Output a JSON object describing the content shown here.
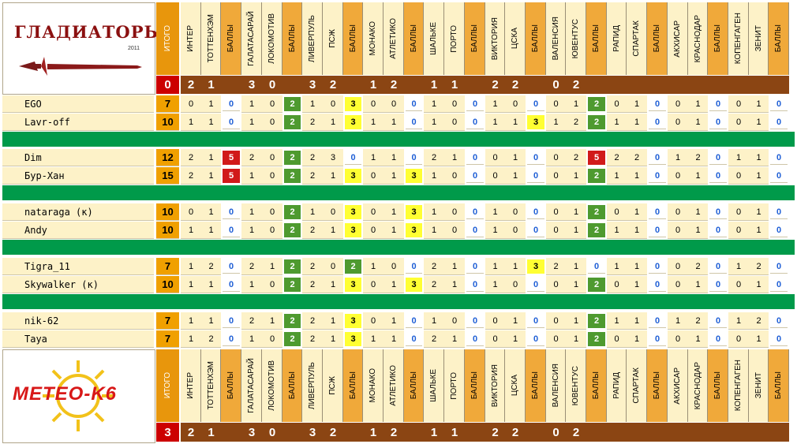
{
  "header": {
    "logo_text": "ГЛАДИАТОРЫ",
    "logo_year": "2011",
    "itogo_label": "ИТОГО",
    "points_label": "БАЛЛЫ",
    "total_value": "0"
  },
  "footer": {
    "logo_text": "METEO-K6",
    "itogo_label": "ИТОГО",
    "points_label": "БАЛЛЫ",
    "total_value": "3"
  },
  "matches": [
    {
      "home": "ИНТЕР",
      "away": "ТОТТЕНХЭМ",
      "hs": "2",
      "as": "1"
    },
    {
      "home": "ГАЛАТАСАРАЙ",
      "away": "ЛОКОМОТИВ",
      "hs": "3",
      "as": "0"
    },
    {
      "home": "ЛИВЕРПУЛЬ",
      "away": "ПСЖ",
      "hs": "3",
      "as": "2"
    },
    {
      "home": "МОНАКО",
      "away": "АТЛЕТИКО",
      "hs": "1",
      "as": "2"
    },
    {
      "home": "ШАЛЬКЕ",
      "away": "ПОРТО",
      "hs": "1",
      "as": "1"
    },
    {
      "home": "ВИКТОРИЯ",
      "away": "ЦСКА",
      "hs": "2",
      "as": "2"
    },
    {
      "home": "ВАЛЕНСИЯ",
      "away": "ЮВЕНТУС",
      "hs": "0",
      "as": "2"
    },
    {
      "home": "РАПИД",
      "away": "СПАРТАК",
      "hs": "",
      "as": ""
    },
    {
      "home": "АКХИСАР",
      "away": "КРАСНОДАР",
      "hs": "",
      "as": ""
    },
    {
      "home": "КОПЕНГАГЕН",
      "away": "ЗЕНИТ",
      "hs": "",
      "as": ""
    }
  ],
  "players": [
    {
      "name": "EGO",
      "total": "7",
      "cells": [
        [
          "0",
          "1",
          "0"
        ],
        [
          "1",
          "0",
          "2"
        ],
        [
          "1",
          "0",
          "3"
        ],
        [
          "0",
          "0",
          "0"
        ],
        [
          "1",
          "0",
          "0"
        ],
        [
          "1",
          "0",
          "0"
        ],
        [
          "0",
          "1",
          "2"
        ],
        [
          "0",
          "1",
          "0"
        ],
        [
          "0",
          "1",
          "0"
        ],
        [
          "0",
          "1",
          "0"
        ]
      ]
    },
    {
      "name": "Lavr-off",
      "total": "10",
      "cells": [
        [
          "1",
          "1",
          "0"
        ],
        [
          "1",
          "0",
          "2"
        ],
        [
          "2",
          "1",
          "3"
        ],
        [
          "1",
          "1",
          "0"
        ],
        [
          "1",
          "0",
          "0"
        ],
        [
          "1",
          "1",
          "3"
        ],
        [
          "1",
          "2",
          "2"
        ],
        [
          "1",
          "1",
          "0"
        ],
        [
          "0",
          "1",
          "0"
        ],
        [
          "0",
          "1",
          "0"
        ]
      ]
    },
    {
      "name": "Dim",
      "total": "12",
      "cells": [
        [
          "2",
          "1",
          "5"
        ],
        [
          "2",
          "0",
          "2"
        ],
        [
          "2",
          "3",
          "0"
        ],
        [
          "1",
          "1",
          "0"
        ],
        [
          "2",
          "1",
          "0"
        ],
        [
          "0",
          "1",
          "0"
        ],
        [
          "0",
          "2",
          "5"
        ],
        [
          "2",
          "2",
          "0"
        ],
        [
          "1",
          "2",
          "0"
        ],
        [
          "1",
          "1",
          "0"
        ]
      ]
    },
    {
      "name": "Бур-Хан",
      "total": "15",
      "cells": [
        [
          "2",
          "1",
          "5"
        ],
        [
          "1",
          "0",
          "2"
        ],
        [
          "2",
          "1",
          "3"
        ],
        [
          "0",
          "1",
          "3"
        ],
        [
          "1",
          "0",
          "0"
        ],
        [
          "0",
          "1",
          "0"
        ],
        [
          "0",
          "1",
          "2"
        ],
        [
          "1",
          "1",
          "0"
        ],
        [
          "0",
          "1",
          "0"
        ],
        [
          "0",
          "1",
          "0"
        ]
      ]
    },
    {
      "name": "nataraga (к)",
      "total": "10",
      "cells": [
        [
          "0",
          "1",
          "0"
        ],
        [
          "1",
          "0",
          "2"
        ],
        [
          "1",
          "0",
          "3"
        ],
        [
          "0",
          "1",
          "3"
        ],
        [
          "1",
          "0",
          "0"
        ],
        [
          "1",
          "0",
          "0"
        ],
        [
          "0",
          "1",
          "2"
        ],
        [
          "0",
          "1",
          "0"
        ],
        [
          "0",
          "1",
          "0"
        ],
        [
          "0",
          "1",
          "0"
        ]
      ]
    },
    {
      "name": "Andy",
      "total": "10",
      "cells": [
        [
          "1",
          "1",
          "0"
        ],
        [
          "1",
          "0",
          "2"
        ],
        [
          "2",
          "1",
          "3"
        ],
        [
          "0",
          "1",
          "3"
        ],
        [
          "1",
          "0",
          "0"
        ],
        [
          "1",
          "0",
          "0"
        ],
        [
          "0",
          "1",
          "2"
        ],
        [
          "1",
          "1",
          "0"
        ],
        [
          "0",
          "1",
          "0"
        ],
        [
          "0",
          "1",
          "0"
        ]
      ]
    },
    {
      "name": "Tigra_11",
      "total": "7",
      "cells": [
        [
          "1",
          "2",
          "0"
        ],
        [
          "2",
          "1",
          "2"
        ],
        [
          "2",
          "0",
          "2"
        ],
        [
          "1",
          "0",
          "0"
        ],
        [
          "2",
          "1",
          "0"
        ],
        [
          "1",
          "1",
          "3"
        ],
        [
          "2",
          "1",
          "0"
        ],
        [
          "1",
          "1",
          "0"
        ],
        [
          "0",
          "2",
          "0"
        ],
        [
          "1",
          "2",
          "0"
        ]
      ]
    },
    {
      "name": "Skywalker (к)",
      "total": "10",
      "cells": [
        [
          "1",
          "1",
          "0"
        ],
        [
          "1",
          "0",
          "2"
        ],
        [
          "2",
          "1",
          "3"
        ],
        [
          "0",
          "1",
          "3"
        ],
        [
          "2",
          "1",
          "0"
        ],
        [
          "1",
          "0",
          "0"
        ],
        [
          "0",
          "1",
          "2"
        ],
        [
          "0",
          "1",
          "0"
        ],
        [
          "0",
          "1",
          "0"
        ],
        [
          "0",
          "1",
          "0"
        ]
      ]
    },
    {
      "name": "nik-62",
      "total": "7",
      "cells": [
        [
          "1",
          "1",
          "0"
        ],
        [
          "2",
          "1",
          "2"
        ],
        [
          "2",
          "1",
          "3"
        ],
        [
          "0",
          "1",
          "0"
        ],
        [
          "1",
          "0",
          "0"
        ],
        [
          "0",
          "1",
          "0"
        ],
        [
          "0",
          "1",
          "2"
        ],
        [
          "1",
          "1",
          "0"
        ],
        [
          "1",
          "2",
          "0"
        ],
        [
          "1",
          "2",
          "0"
        ]
      ]
    },
    {
      "name": "Taya",
      "total": "7",
      "cells": [
        [
          "1",
          "2",
          "0"
        ],
        [
          "1",
          "0",
          "2"
        ],
        [
          "2",
          "1",
          "3"
        ],
        [
          "1",
          "1",
          "0"
        ],
        [
          "2",
          "1",
          "0"
        ],
        [
          "0",
          "1",
          "0"
        ],
        [
          "0",
          "1",
          "2"
        ],
        [
          "0",
          "1",
          "0"
        ],
        [
          "0",
          "1",
          "0"
        ],
        [
          "0",
          "1",
          "0"
        ]
      ]
    }
  ],
  "colors": {
    "win": "#4e9a2f",
    "exact": "#ffff33",
    "double": "#d11a1a",
    "separator": "#009a4a"
  }
}
